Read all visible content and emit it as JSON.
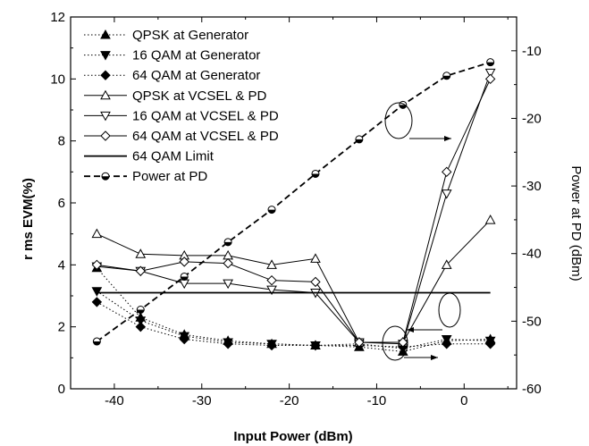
{
  "chart_data": {
    "type": "line",
    "title": "",
    "xlabel": "Input Power (dBm)",
    "ylabel": "r ms EVM(%)",
    "y2label": "Power at PD (dBm)",
    "xlim": [
      -45,
      6
    ],
    "ylim": [
      0,
      12
    ],
    "y2lim": [
      -60,
      -5
    ],
    "xticks": [
      "-40",
      "-30",
      "-20",
      "-10",
      "0"
    ],
    "yticks": [
      "0",
      "2",
      "4",
      "6",
      "8",
      "10",
      "12"
    ],
    "y2ticks": [
      "-10",
      "-20",
      "-30",
      "-40",
      "-50",
      "-60"
    ],
    "legend_position": "top-left",
    "series": [
      {
        "name": "QPSK at Generator",
        "marker": "triangle-up-filled",
        "dash": "dot",
        "axis": "left",
        "x": [
          -42,
          -37,
          -32,
          -27,
          -22,
          -17,
          -12,
          -7,
          -2,
          3
        ],
        "y": [
          3.9,
          2.3,
          1.75,
          1.55,
          1.45,
          1.4,
          1.35,
          1.2,
          1.55,
          1.6
        ]
      },
      {
        "name": "16 QAM at Generator",
        "marker": "triangle-down-filled",
        "dash": "dot",
        "axis": "left",
        "x": [
          -42,
          -37,
          -32,
          -27,
          -22,
          -17,
          -12,
          -7,
          -2,
          3
        ],
        "y": [
          3.15,
          2.2,
          1.7,
          1.5,
          1.45,
          1.4,
          1.45,
          1.3,
          1.6,
          1.55
        ]
      },
      {
        "name": "64 QAM at Generator",
        "marker": "diamond-filled",
        "dash": "dot",
        "axis": "left",
        "x": [
          -42,
          -37,
          -32,
          -27,
          -22,
          -17,
          -12,
          -7,
          -2,
          3
        ],
        "y": [
          2.8,
          2.0,
          1.6,
          1.45,
          1.4,
          1.4,
          1.4,
          1.35,
          1.45,
          1.45
        ]
      },
      {
        "name": "QPSK at VCSEL & PD",
        "marker": "triangle-up-open",
        "dash": "solid",
        "axis": "left",
        "x": [
          -42,
          -37,
          -32,
          -27,
          -22,
          -17,
          -12,
          -7,
          -2,
          3
        ],
        "y": [
          5.0,
          4.35,
          4.3,
          4.3,
          4.0,
          4.2,
          1.5,
          1.5,
          4.0,
          5.45
        ]
      },
      {
        "name": "16 QAM at VCSEL & PD",
        "marker": "triangle-down-open",
        "dash": "solid",
        "axis": "left",
        "x": [
          -42,
          -37,
          -32,
          -27,
          -22,
          -17,
          -12,
          -7,
          -2,
          3
        ],
        "y": [
          3.95,
          3.8,
          3.4,
          3.4,
          3.2,
          3.1,
          1.5,
          1.45,
          6.3,
          10.2
        ]
      },
      {
        "name": "64 QAM at VCSEL & PD",
        "marker": "diamond-open",
        "dash": "solid",
        "axis": "left",
        "x": [
          -42,
          -37,
          -32,
          -27,
          -22,
          -17,
          -12,
          -7,
          -2,
          3
        ],
        "y": [
          4.0,
          3.8,
          4.1,
          4.05,
          3.5,
          3.45,
          1.5,
          1.5,
          7.0,
          10.0
        ]
      },
      {
        "name": "64 QAM Limit",
        "marker": "none",
        "dash": "solid-thick",
        "axis": "left",
        "x": [
          -42,
          3
        ],
        "y": [
          3.1,
          3.1
        ]
      },
      {
        "name": "Power at PD",
        "marker": "circle-half",
        "dash": "dash",
        "axis": "right",
        "x": [
          -42,
          -37,
          -32,
          -27,
          -22,
          -17,
          -12,
          -7,
          -2,
          3
        ],
        "y": [
          -53,
          -48.3,
          -43.4,
          -38.3,
          -33.5,
          -28.2,
          -23.1,
          -18,
          -13.7,
          -11.7
        ]
      }
    ],
    "colors": {
      "foreground": "#000000",
      "background": "#ffffff"
    }
  }
}
